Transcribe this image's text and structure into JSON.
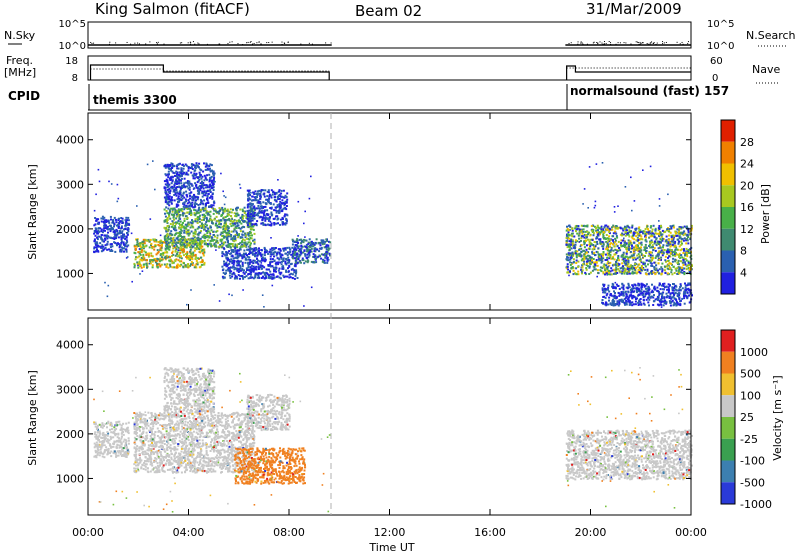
{
  "header": {
    "station": "King Salmon (fitACF)",
    "beam": "Beam 02",
    "date": "31/Mar/2009"
  },
  "strip": {
    "nsky_label": "N.Sky",
    "nsearch_label": "N.Search",
    "freq_label_1": "Freq.",
    "freq_label_2": "[MHz]",
    "nave_label": "Nave",
    "cpid_label": "CPID",
    "nsky_ticks": [
      "10^5",
      "10^0"
    ],
    "nsky_right_ticks": [
      "10^5",
      "10^0"
    ],
    "freq_ticks": [
      "18",
      "8"
    ],
    "nave_ticks": [
      "60",
      "0"
    ],
    "cpid_left": "themis 3300",
    "cpid_right": "normalsound (fast) 157"
  },
  "power_panel": {
    "ylabel": "Slant Range [km]",
    "yticks": [
      "4000",
      "3000",
      "2000",
      "1000"
    ],
    "cbar_label": "Power [dB]",
    "cbar_ticks": [
      "28",
      "24",
      "20",
      "16",
      "12",
      "8",
      "4"
    ]
  },
  "velocity_panel": {
    "ylabel": "Slant Range [km]",
    "yticks": [
      "4000",
      "3000",
      "2000",
      "1000"
    ],
    "cbar_label": "Velocity [m s⁻¹]",
    "cbar_ticks": [
      "1000",
      "500",
      "100",
      "25",
      "-25",
      "-100",
      "-500",
      "-1000"
    ]
  },
  "xaxis": {
    "label": "Time UT",
    "ticks": [
      "00:00",
      "04:00",
      "08:00",
      "12:00",
      "16:00",
      "20:00",
      "00:00"
    ]
  },
  "chart_data": {
    "type": "heatmap",
    "x_range_hours": [
      0,
      24
    ],
    "y_range_km": [
      180,
      4600
    ],
    "data_gap_hours": [
      9.7,
      19.0
    ],
    "power_colors": [
      "#2020e0",
      "#2a60b0",
      "#3f8a70",
      "#48b048",
      "#a8c820",
      "#f0c000",
      "#f08000",
      "#e02000"
    ],
    "velocity_colors": [
      "#2a3ad8",
      "#3c7fb0",
      "#3aa050",
      "#78c040",
      "#c8c8c8",
      "#f0c030",
      "#f08020",
      "#e02020"
    ],
    "grey_fill": "#c8c8c8",
    "power_regions": [
      {
        "t0": 0.2,
        "t1": 1.6,
        "r0": 1500,
        "r1": 2300,
        "level": [
          0,
          1
        ]
      },
      {
        "t0": 1.8,
        "t1": 4.6,
        "r0": 1150,
        "r1": 1800,
        "level": [
          2,
          6
        ]
      },
      {
        "t0": 3.0,
        "t1": 6.6,
        "r0": 1600,
        "r1": 2500,
        "level": [
          1,
          4
        ]
      },
      {
        "t0": 3.0,
        "t1": 5.0,
        "r0": 2500,
        "r1": 3500,
        "level": [
          0,
          1
        ]
      },
      {
        "t0": 5.3,
        "t1": 8.3,
        "r0": 900,
        "r1": 1600,
        "level": [
          0,
          1
        ]
      },
      {
        "t0": 6.3,
        "t1": 7.9,
        "r0": 2100,
        "r1": 2900,
        "level": [
          0,
          1
        ]
      },
      {
        "t0": 8.1,
        "t1": 9.6,
        "r0": 1250,
        "r1": 1800,
        "level": [
          0,
          2
        ]
      },
      {
        "t0": 19.0,
        "t1": 24.0,
        "r0": 1000,
        "r1": 2100,
        "level": [
          0,
          5
        ]
      },
      {
        "t0": 20.4,
        "t1": 24.0,
        "r0": 300,
        "r1": 800,
        "level": [
          0,
          1
        ]
      }
    ],
    "velocity_regions": [
      {
        "t0": 0.2,
        "t1": 1.6,
        "r0": 1500,
        "r1": 2300,
        "bin": 4
      },
      {
        "t0": 1.8,
        "t1": 6.6,
        "r0": 1150,
        "r1": 2500,
        "bin": 4
      },
      {
        "t0": 3.0,
        "t1": 5.0,
        "r0": 2500,
        "r1": 3500,
        "bin": 4
      },
      {
        "t0": 6.3,
        "t1": 8.0,
        "r0": 2100,
        "r1": 2900,
        "bin": 4
      },
      {
        "t0": 5.8,
        "t1": 8.6,
        "r0": 900,
        "r1": 1700,
        "bin": 6
      },
      {
        "t0": 19.0,
        "t1": 24.0,
        "r0": 1000,
        "r1": 2100,
        "bin": 4
      }
    ]
  }
}
